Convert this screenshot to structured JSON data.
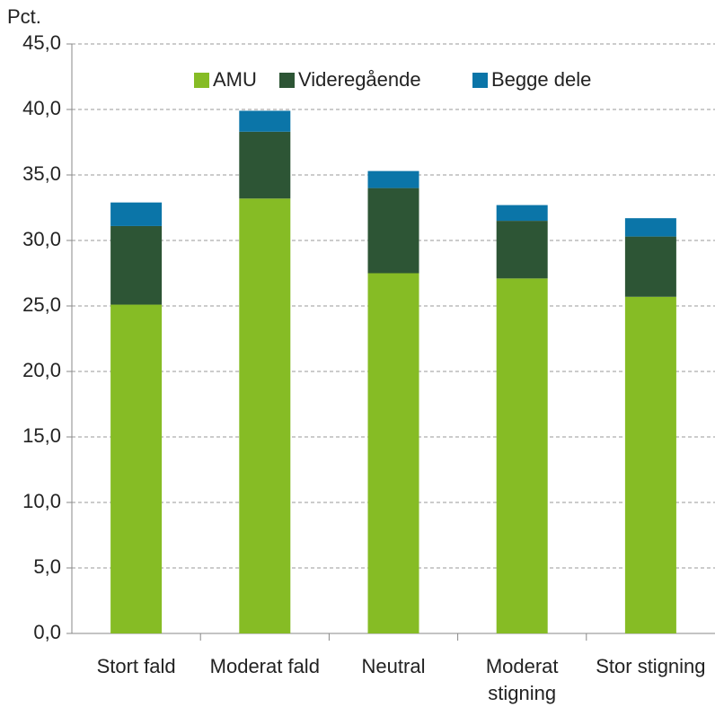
{
  "chart_data": {
    "type": "stacked_bar",
    "y_unit_label": "Pct.",
    "categories": [
      "Stort fald",
      "Moderat fald",
      "Neutral",
      "Moderat stigning",
      "Stor stigning"
    ],
    "series": [
      {
        "name": "AMU",
        "color": "#86bc25",
        "values": [
          25.1,
          33.2,
          27.5,
          27.1,
          25.7
        ]
      },
      {
        "name": "Videregående",
        "color": "#2d5535",
        "values": [
          6.0,
          5.1,
          6.5,
          4.4,
          4.6
        ]
      },
      {
        "name": "Begge dele",
        "color": "#0b75a8",
        "values": [
          1.8,
          1.6,
          1.3,
          1.2,
          1.4
        ]
      }
    ],
    "ylim": [
      0,
      45
    ],
    "yticks": [
      {
        "value": 0,
        "label": "0,0"
      },
      {
        "value": 5,
        "label": "5,0"
      },
      {
        "value": 10,
        "label": "10,0"
      },
      {
        "value": 15,
        "label": "15,0"
      },
      {
        "value": 20,
        "label": "20,0"
      },
      {
        "value": 25,
        "label": "25,0"
      },
      {
        "value": 30,
        "label": "30,0"
      },
      {
        "value": 35,
        "label": "35,0"
      },
      {
        "value": 40,
        "label": "40,0"
      },
      {
        "value": 45,
        "label": "45,0"
      }
    ],
    "grid": true,
    "legend": "top"
  }
}
